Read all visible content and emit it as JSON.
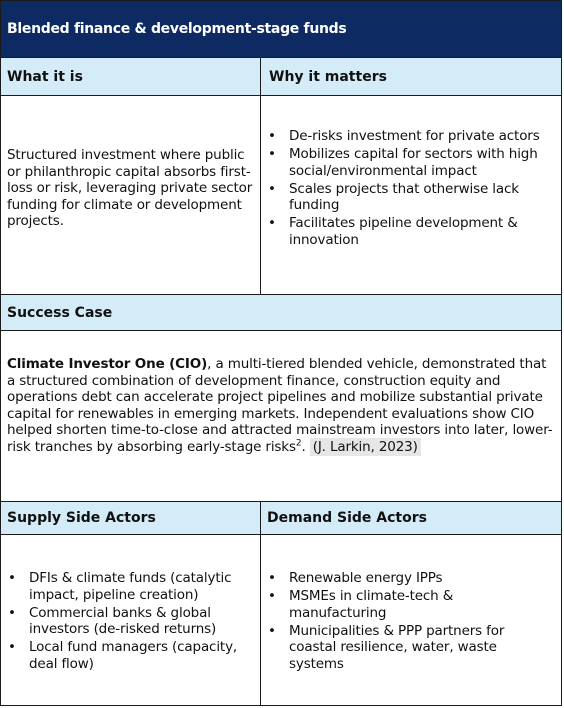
{
  "title": "Blended finance & development-stage funds",
  "what_header": "What it is",
  "why_header": "Why it matters",
  "what_text": "Structured investment where public or philanthropic capital absorbs first-loss or risk, leveraging private sector funding for climate or development projects.",
  "why_items": [
    "De-risks investment for private actors",
    "Mobilizes capital for sectors with high social/environmental impact",
    "Scales projects that otherwise lack funding",
    "Facilitates pipeline development & innovation"
  ],
  "success_header": "Success Case",
  "success": {
    "lead": "Climate Investor One (CIO)",
    "body": ", a multi-tiered blended vehicle, demonstrated that a structured combination of development finance, construction equity and operations debt can accelerate project pipelines and mobilize substantial private capital for renewables in emerging markets. Independent evaluations show CIO helped shorten time-to-close and attracted mainstream investors into later, lower-risk tranches by absorbing early-stage risks",
    "footnote": "2",
    "period": ". ",
    "citation": "(J. Larkin, 2023)"
  },
  "supply_header": "Supply Side Actors",
  "demand_header": "Demand Side Actors",
  "supply_items": [
    "DFIs & climate funds (catalytic impact, pipeline creation)",
    "Commercial banks & global investors (de-risked returns)",
    "Local fund managers (capacity, deal flow)"
  ],
  "demand_items": [
    "Renewable energy IPPs",
    "MSMEs in climate-tech & manufacturing",
    "Municipalities & PPP partners for coastal resilience, water, waste systems"
  ]
}
